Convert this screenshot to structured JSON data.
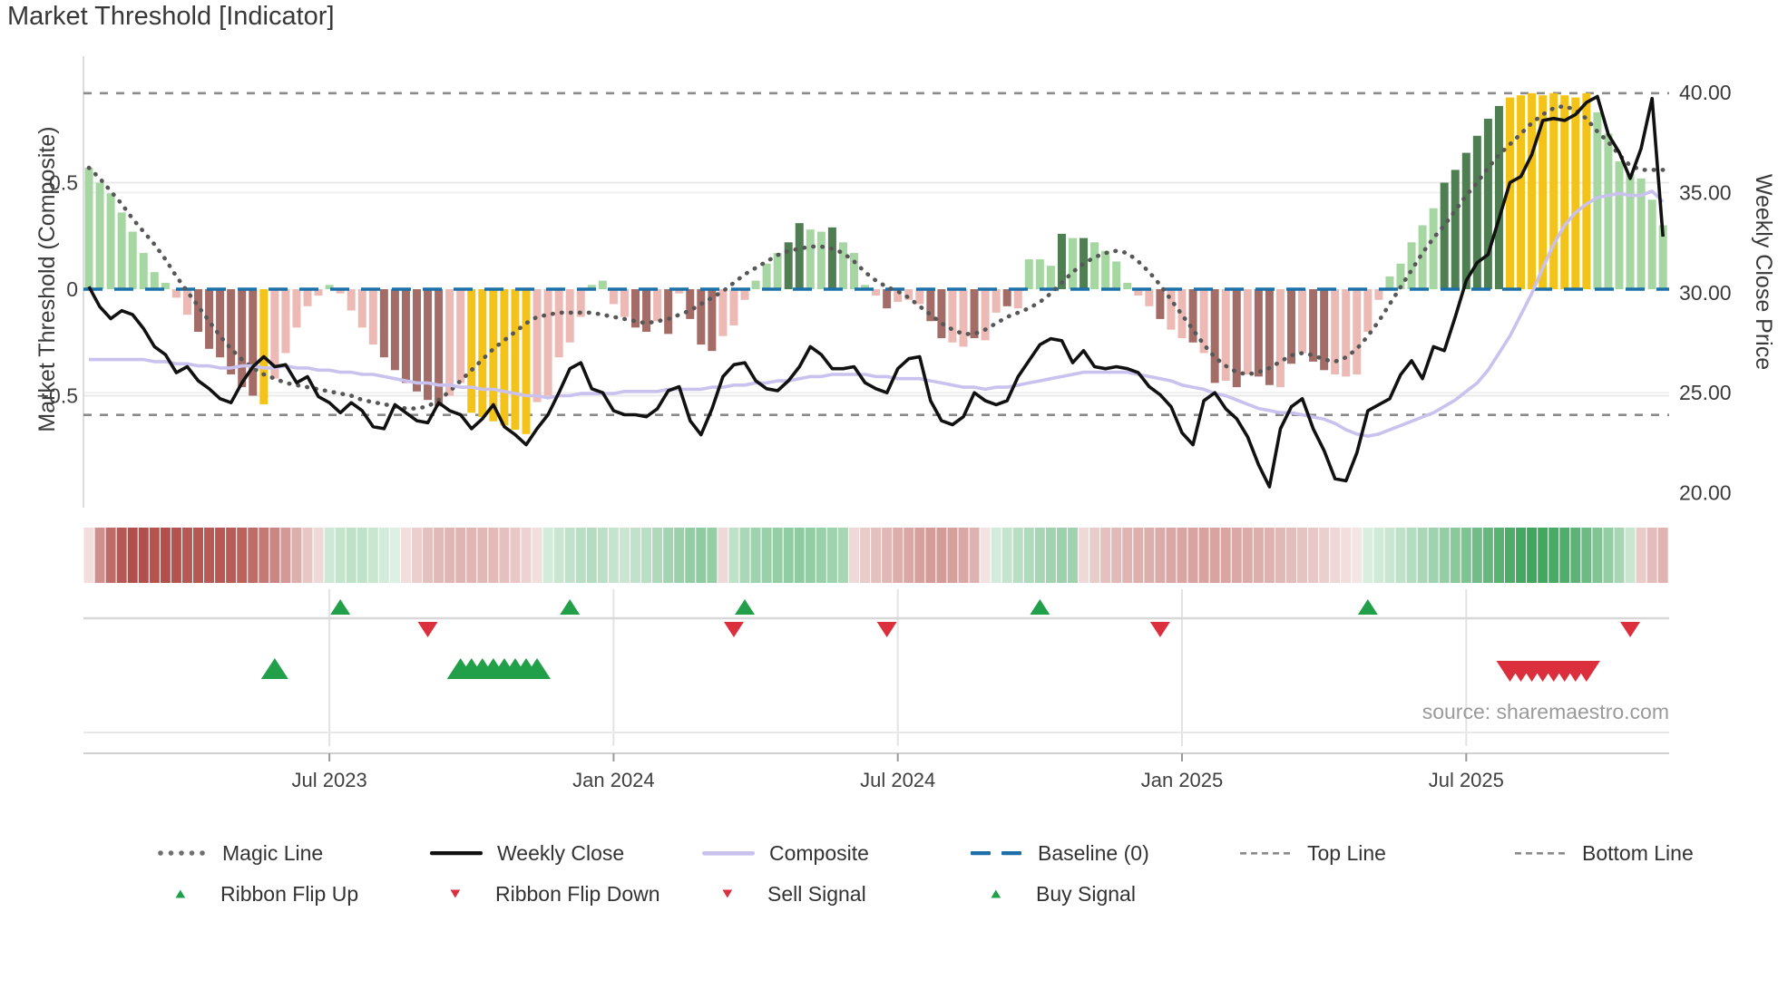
{
  "header": {
    "title": "Market Threshold [Indicator]"
  },
  "axes": {
    "left_label": "Market Threshold (Composite)",
    "right_label": "Weekly Close Price"
  },
  "source_note": "source: sharemaestro.com",
  "colors": {
    "bar_light_green": "#a6d6a1",
    "bar_dark_green": "#507e53",
    "bar_pink": "#ecb9b4",
    "bar_brown": "#a36c67",
    "bar_yellow": "#f4c319",
    "weekly_close_line": "#111111",
    "composite_line": "#c9c1ee",
    "magic_line": "#575757",
    "baseline": "#1d6fa8",
    "top_bottom_line": "#8a8a8a",
    "signal_green": "#21a049",
    "signal_red": "#dc2f3e",
    "ribbon_red": "#b04843",
    "ribbon_green": "#2f9e4f",
    "grid": "#e9e9e9",
    "tick_text": "#3f3f3f"
  },
  "legend": {
    "row1": [
      {
        "type": "dots",
        "label": "Magic Line"
      },
      {
        "type": "solid-black",
        "label": "Weekly Close"
      },
      {
        "type": "solid-purple",
        "label": "Composite"
      },
      {
        "type": "dash-blue",
        "label": "Baseline (0)"
      },
      {
        "type": "dash-gray",
        "label": "Top Line"
      },
      {
        "type": "dash-gray",
        "label": "Bottom Line"
      }
    ],
    "row2": [
      {
        "type": "tri-up",
        "label": "Ribbon Flip Up"
      },
      {
        "type": "tri-down",
        "label": "Ribbon Flip Down"
      },
      {
        "type": "tri-down",
        "label": "Sell Signal"
      },
      {
        "type": "tri-up",
        "label": "Buy Signal"
      }
    ]
  },
  "chart_data": {
    "type": "bar",
    "subtype": "dual-axis weekly indicator: composite histogram + price lines + momentum ribbon + signals",
    "weeks": 145,
    "title": "Market Threshold [Indicator]",
    "xlabel": "",
    "ylabel_left": "Market Threshold (Composite)",
    "ylabel_right": "Weekly Close Price",
    "xticks": [
      {
        "week": 22,
        "label": "Jul 2023"
      },
      {
        "week": 48,
        "label": "Jan 2024"
      },
      {
        "week": 74,
        "label": "Jul 2024"
      },
      {
        "week": 100,
        "label": "Jan 2025"
      },
      {
        "week": 126,
        "label": "Jul 2025"
      }
    ],
    "left_axis": {
      "ticks": [
        {
          "v": 0.5,
          "label": "0.5"
        },
        {
          "v": 0,
          "label": "0"
        },
        {
          "v": -0.5,
          "label": "−0.5"
        }
      ],
      "range": [
        -0.78,
        1.0
      ]
    },
    "right_axis": {
      "ticks": [
        {
          "v": 40,
          "label": "40.00"
        },
        {
          "v": 35,
          "label": "35.00"
        },
        {
          "v": 30,
          "label": "30.00"
        },
        {
          "v": 25,
          "label": "25.00"
        },
        {
          "v": 20,
          "label": "20.00"
        }
      ],
      "range": [
        18.9,
        41.0
      ]
    },
    "baseline": 0,
    "top_line": 0.92,
    "bottom_line": -0.59,
    "series": {
      "threshold_bars": {
        "values": [
          0.57,
          0.5,
          0.45,
          0.36,
          0.27,
          0.17,
          0.08,
          0.03,
          -0.04,
          -0.12,
          -0.2,
          -0.28,
          -0.32,
          -0.4,
          -0.46,
          -0.5,
          -0.54,
          -0.42,
          -0.3,
          -0.18,
          -0.08,
          -0.03,
          0.02,
          -0.02,
          -0.1,
          -0.18,
          -0.26,
          -0.32,
          -0.38,
          -0.44,
          -0.48,
          -0.52,
          -0.55,
          -0.5,
          -0.44,
          -0.58,
          -0.6,
          -0.62,
          -0.64,
          -0.66,
          -0.68,
          -0.53,
          -0.5,
          -0.32,
          -0.25,
          -0.13,
          0.02,
          0.04,
          -0.07,
          -0.13,
          -0.18,
          -0.2,
          -0.15,
          -0.21,
          -0.02,
          -0.14,
          -0.26,
          -0.29,
          -0.22,
          -0.17,
          -0.05,
          0.04,
          0.12,
          0.17,
          0.22,
          0.31,
          0.28,
          0.27,
          0.29,
          0.22,
          0.17,
          0.02,
          -0.03,
          -0.09,
          -0.06,
          -0.05,
          -0.07,
          -0.15,
          -0.23,
          -0.25,
          -0.27,
          -0.23,
          -0.24,
          -0.11,
          -0.08,
          -0.09,
          0.14,
          0.14,
          0.11,
          0.26,
          0.24,
          0.24,
          0.22,
          0.18,
          0.13,
          0.03,
          -0.03,
          -0.08,
          -0.14,
          -0.19,
          -0.23,
          -0.25,
          -0.3,
          -0.44,
          -0.43,
          -0.46,
          -0.4,
          -0.41,
          -0.45,
          -0.46,
          -0.35,
          -0.3,
          -0.34,
          -0.38,
          -0.4,
          -0.41,
          -0.4,
          -0.2,
          -0.05,
          0.06,
          0.12,
          0.22,
          0.3,
          0.38,
          0.5,
          0.56,
          0.64,
          0.72,
          0.8,
          0.86,
          0.9,
          0.91,
          0.92,
          0.91,
          0.92,
          0.91,
          0.9,
          0.92,
          0.83,
          0.73,
          0.6,
          0.54,
          0.52,
          0.42,
          0.3
        ],
        "colors": [
          "l",
          "l",
          "l",
          "l",
          "l",
          "l",
          "l",
          "l",
          "p",
          "p",
          "b",
          "b",
          "b",
          "b",
          "b",
          "b",
          "y",
          "p",
          "p",
          "p",
          "p",
          "p",
          "l",
          "p",
          "p",
          "p",
          "p",
          "b",
          "b",
          "b",
          "b",
          "b",
          "b",
          "p",
          "p",
          "y",
          "y",
          "y",
          "y",
          "y",
          "y",
          "p",
          "p",
          "p",
          "p",
          "p",
          "l",
          "l",
          "p",
          "p",
          "b",
          "b",
          "p",
          "b",
          "p",
          "b",
          "b",
          "b",
          "p",
          "p",
          "p",
          "l",
          "l",
          "l",
          "d",
          "d",
          "l",
          "l",
          "d",
          "l",
          "l",
          "l",
          "p",
          "b",
          "p",
          "p",
          "p",
          "b",
          "b",
          "p",
          "p",
          "b",
          "p",
          "p",
          "b",
          "p",
          "l",
          "l",
          "l",
          "d",
          "l",
          "d",
          "l",
          "l",
          "l",
          "l",
          "p",
          "p",
          "b",
          "p",
          "p",
          "b",
          "p",
          "b",
          "p",
          "b",
          "p",
          "b",
          "b",
          "p",
          "b",
          "p",
          "b",
          "b",
          "p",
          "p",
          "p",
          "p",
          "p",
          "l",
          "l",
          "l",
          "l",
          "l",
          "d",
          "d",
          "d",
          "d",
          "d",
          "d",
          "y",
          "y",
          "y",
          "y",
          "y",
          "y",
          "y",
          "y",
          "l",
          "l",
          "l",
          "l",
          "l",
          "l",
          "l"
        ]
      },
      "weekly_close": [
        30.3,
        29.3,
        28.7,
        29.1,
        28.9,
        28.2,
        27.3,
        26.9,
        26.0,
        26.3,
        25.6,
        25.2,
        24.7,
        24.5,
        25.5,
        26.3,
        26.8,
        26.3,
        26.4,
        25.5,
        25.8,
        24.8,
        24.5,
        24.0,
        24.5,
        24.1,
        23.3,
        23.2,
        24.4,
        24.0,
        23.6,
        23.5,
        24.5,
        24.1,
        23.9,
        23.2,
        23.7,
        24.4,
        23.3,
        22.9,
        22.4,
        23.2,
        23.9,
        25.0,
        26.2,
        26.5,
        25.2,
        25.0,
        24.1,
        23.9,
        23.9,
        23.8,
        24.2,
        25.1,
        25.3,
        23.6,
        22.9,
        24.2,
        25.8,
        26.4,
        26.5,
        25.6,
        25.2,
        25.1,
        25.6,
        26.3,
        27.3,
        26.9,
        26.2,
        26.2,
        26.3,
        25.5,
        25.2,
        25.0,
        26.2,
        26.7,
        26.8,
        24.6,
        23.6,
        23.4,
        23.8,
        25.0,
        24.6,
        24.4,
        24.6,
        25.8,
        26.6,
        27.4,
        27.7,
        27.6,
        26.5,
        27.1,
        26.3,
        26.2,
        26.3,
        26.2,
        26.0,
        25.3,
        24.9,
        24.3,
        23.0,
        22.4,
        24.6,
        25.0,
        24.2,
        23.7,
        22.8,
        21.4,
        20.3,
        23.2,
        24.3,
        24.7,
        23.2,
        22.1,
        20.7,
        20.6,
        22.0,
        24.1,
        24.4,
        24.7,
        25.9,
        26.6,
        25.7,
        27.3,
        27.1,
        28.8,
        30.6,
        31.5,
        31.9,
        33.7,
        35.5,
        35.8,
        36.9,
        38.6,
        38.7,
        38.6,
        38.9,
        39.5,
        39.8,
        37.9,
        37.0,
        35.7,
        37.2,
        39.7,
        32.8
      ],
      "composite": [
        -0.33,
        -0.33,
        -0.33,
        -0.33,
        -0.33,
        -0.33,
        -0.34,
        -0.34,
        -0.35,
        -0.35,
        -0.36,
        -0.36,
        -0.37,
        -0.37,
        -0.36,
        -0.36,
        -0.37,
        -0.37,
        -0.36,
        -0.37,
        -0.37,
        -0.38,
        -0.38,
        -0.39,
        -0.39,
        -0.4,
        -0.4,
        -0.41,
        -0.42,
        -0.43,
        -0.44,
        -0.44,
        -0.45,
        -0.45,
        -0.46,
        -0.46,
        -0.47,
        -0.47,
        -0.48,
        -0.49,
        -0.5,
        -0.5,
        -0.51,
        -0.5,
        -0.5,
        -0.49,
        -0.49,
        -0.49,
        -0.49,
        -0.48,
        -0.48,
        -0.48,
        -0.48,
        -0.47,
        -0.47,
        -0.47,
        -0.47,
        -0.46,
        -0.46,
        -0.45,
        -0.45,
        -0.44,
        -0.44,
        -0.43,
        -0.43,
        -0.42,
        -0.41,
        -0.41,
        -0.4,
        -0.4,
        -0.4,
        -0.4,
        -0.41,
        -0.41,
        -0.42,
        -0.42,
        -0.42,
        -0.43,
        -0.44,
        -0.45,
        -0.46,
        -0.46,
        -0.47,
        -0.46,
        -0.46,
        -0.45,
        -0.44,
        -0.43,
        -0.42,
        -0.41,
        -0.4,
        -0.39,
        -0.39,
        -0.39,
        -0.39,
        -0.39,
        -0.4,
        -0.41,
        -0.42,
        -0.43,
        -0.45,
        -0.46,
        -0.47,
        -0.49,
        -0.5,
        -0.52,
        -0.54,
        -0.56,
        -0.57,
        -0.58,
        -0.58,
        -0.59,
        -0.6,
        -0.61,
        -0.63,
        -0.66,
        -0.68,
        -0.69,
        -0.68,
        -0.66,
        -0.64,
        -0.62,
        -0.6,
        -0.58,
        -0.55,
        -0.52,
        -0.48,
        -0.44,
        -0.38,
        -0.3,
        -0.22,
        -0.12,
        -0.02,
        0.1,
        0.21,
        0.3,
        0.36,
        0.4,
        0.43,
        0.44,
        0.45,
        0.44,
        0.44,
        0.46,
        0.41
      ],
      "magic_line": [
        0.57,
        0.52,
        0.46,
        0.4,
        0.33,
        0.27,
        0.21,
        0.14,
        0.06,
        -0.01,
        -0.08,
        -0.15,
        -0.22,
        -0.28,
        -0.33,
        -0.37,
        -0.4,
        -0.42,
        -0.44,
        -0.45,
        -0.46,
        -0.47,
        -0.48,
        -0.49,
        -0.5,
        -0.52,
        -0.53,
        -0.54,
        -0.55,
        -0.56,
        -0.56,
        -0.55,
        -0.52,
        -0.48,
        -0.43,
        -0.38,
        -0.33,
        -0.28,
        -0.24,
        -0.2,
        -0.16,
        -0.13,
        -0.12,
        -0.11,
        -0.11,
        -0.11,
        -0.11,
        -0.12,
        -0.13,
        -0.14,
        -0.15,
        -0.16,
        -0.15,
        -0.14,
        -0.12,
        -0.1,
        -0.07,
        -0.04,
        -0.01,
        0.03,
        0.07,
        0.1,
        0.13,
        0.16,
        0.18,
        0.19,
        0.2,
        0.2,
        0.19,
        0.17,
        0.13,
        0.08,
        0.04,
        0.01,
        -0.01,
        -0.04,
        -0.08,
        -0.12,
        -0.16,
        -0.19,
        -0.21,
        -0.21,
        -0.19,
        -0.16,
        -0.13,
        -0.11,
        -0.09,
        -0.06,
        -0.02,
        0.03,
        0.08,
        0.12,
        0.15,
        0.17,
        0.18,
        0.17,
        0.13,
        0.08,
        0.02,
        -0.05,
        -0.12,
        -0.19,
        -0.26,
        -0.32,
        -0.36,
        -0.39,
        -0.4,
        -0.39,
        -0.37,
        -0.34,
        -0.31,
        -0.3,
        -0.31,
        -0.33,
        -0.34,
        -0.32,
        -0.28,
        -0.22,
        -0.15,
        -0.07,
        0.01,
        0.09,
        0.17,
        0.24,
        0.3,
        0.37,
        0.44,
        0.5,
        0.57,
        0.63,
        0.68,
        0.73,
        0.78,
        0.82,
        0.85,
        0.86,
        0.84,
        0.8,
        0.74,
        0.69,
        0.63,
        0.58,
        0.56,
        0.56,
        0.56
      ],
      "ribbon": [
        -0.12,
        -0.55,
        -0.75,
        -0.85,
        -0.9,
        -0.9,
        -0.88,
        -0.9,
        -0.88,
        -0.85,
        -0.86,
        -0.84,
        -0.85,
        -0.83,
        -0.8,
        -0.75,
        -0.68,
        -0.6,
        -0.5,
        -0.38,
        -0.25,
        -0.15,
        0.18,
        0.22,
        0.25,
        0.24,
        0.2,
        0.15,
        0.1,
        -0.12,
        -0.2,
        -0.28,
        -0.32,
        -0.34,
        -0.35,
        -0.34,
        -0.33,
        -0.31,
        -0.28,
        -0.24,
        -0.18,
        -0.12,
        0.15,
        0.2,
        0.24,
        0.28,
        0.3,
        0.26,
        0.22,
        0.2,
        0.24,
        0.28,
        0.33,
        0.38,
        0.42,
        0.46,
        0.48,
        0.45,
        -0.15,
        0.25,
        0.35,
        0.4,
        0.43,
        0.45,
        0.47,
        0.48,
        0.46,
        0.43,
        0.4,
        0.36,
        -0.15,
        -0.22,
        -0.28,
        -0.33,
        -0.38,
        -0.42,
        -0.46,
        -0.48,
        -0.48,
        -0.46,
        -0.42,
        -0.36,
        -0.1,
        0.15,
        0.22,
        0.28,
        0.32,
        0.36,
        0.39,
        0.41,
        0.4,
        -0.15,
        -0.22,
        -0.28,
        -0.32,
        -0.35,
        -0.37,
        -0.38,
        -0.4,
        -0.42,
        -0.43,
        -0.44,
        -0.45,
        -0.44,
        -0.43,
        -0.41,
        -0.4,
        -0.38,
        -0.36,
        -0.33,
        -0.3,
        -0.27,
        -0.24,
        -0.2,
        -0.16,
        -0.12,
        -0.08,
        0.12,
        0.16,
        0.2,
        0.25,
        0.3,
        0.35,
        0.4,
        0.45,
        0.5,
        0.56,
        0.62,
        0.68,
        0.74,
        0.8,
        0.84,
        0.86,
        0.85,
        0.82,
        0.78,
        0.72,
        0.64,
        0.55,
        0.46,
        0.36,
        0.2,
        -0.22,
        -0.3,
        -0.35
      ]
    },
    "signals": {
      "ribbon_flip_up_weeks": [
        23,
        44,
        60,
        87,
        117
      ],
      "ribbon_flip_down_weeks": [
        31,
        59,
        73,
        98,
        141
      ],
      "buy_signal_weeks": [
        17,
        34,
        35,
        36,
        37,
        38,
        39,
        40,
        41
      ],
      "sell_signal_weeks": [
        130,
        131,
        132,
        133,
        134,
        135,
        136,
        137
      ]
    },
    "legend_position": "bottom",
    "grid": "horizontal-light"
  }
}
